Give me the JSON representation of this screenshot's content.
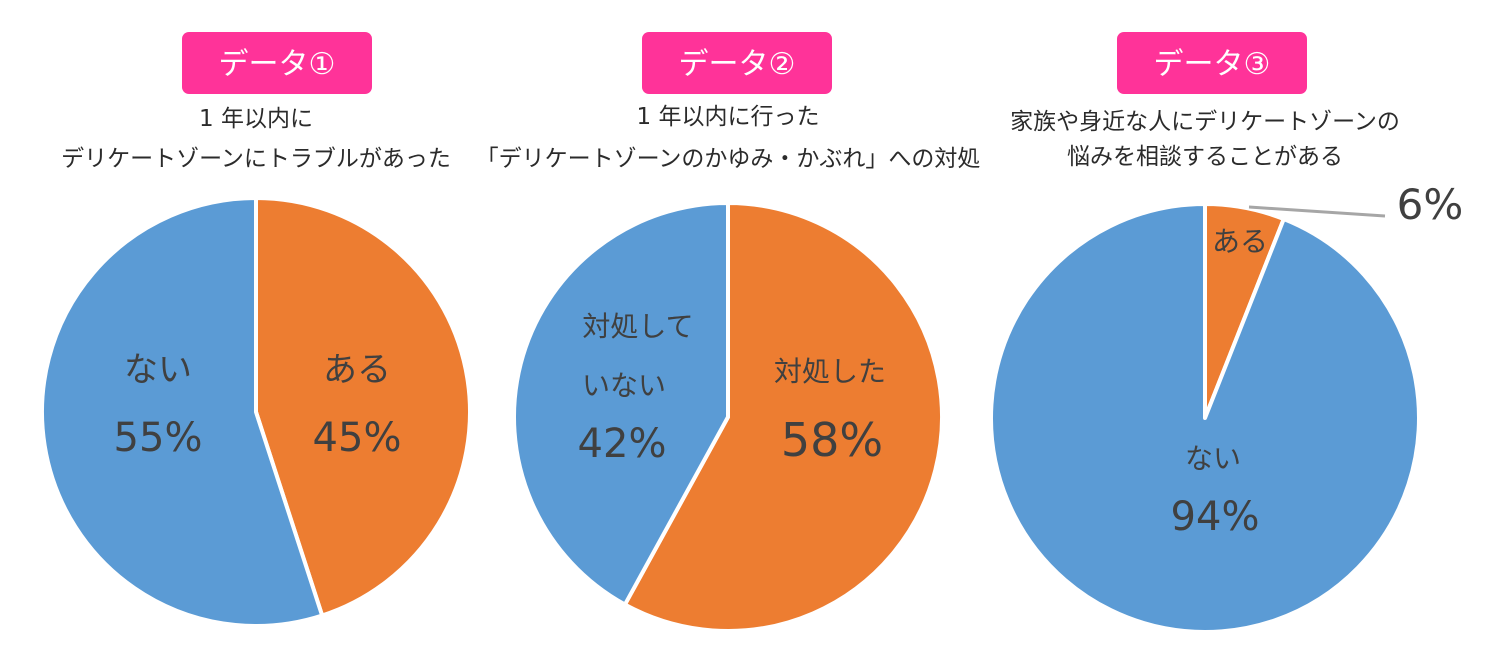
{
  "colors": {
    "badge": "#ff3399",
    "badge_text": "#ffffff",
    "blue": "#5b9bd5",
    "orange": "#ed7d31",
    "slice_border": "#ffffff",
    "label_text": "#404040",
    "leader_line": "#a6a6a6"
  },
  "chart_data": [
    {
      "type": "pie",
      "badge": "データ①",
      "title_lines": [
        "1 年以内に",
        "デリケートゾーンにトラブルがあった"
      ],
      "slices": [
        {
          "label_lines": [
            "ある"
          ],
          "value": 45,
          "value_label": "45%",
          "color": "#ed7d31"
        },
        {
          "label_lines": [
            "ない"
          ],
          "value": 55,
          "value_label": "55%",
          "color": "#5b9bd5"
        }
      ]
    },
    {
      "type": "pie",
      "badge": "データ②",
      "title_lines": [
        "1 年以内に行った",
        "「デリケートゾーンのかゆみ・かぶれ」への対処"
      ],
      "slices": [
        {
          "label_lines": [
            "対処した"
          ],
          "value": 58,
          "value_label": "58%",
          "color": "#ed7d31"
        },
        {
          "label_lines": [
            "対処して",
            "いない"
          ],
          "value": 42,
          "value_label": "42%",
          "color": "#5b9bd5"
        }
      ]
    },
    {
      "type": "pie",
      "badge": "データ③",
      "title_lines": [
        "家族や身近な人にデリケートゾーンの",
        "悩みを相談することがある"
      ],
      "slices": [
        {
          "label_lines": [
            "ある"
          ],
          "value": 6,
          "value_label": "6%",
          "color": "#ed7d31"
        },
        {
          "label_lines": [
            "ない"
          ],
          "value": 94,
          "value_label": "94%",
          "color": "#5b9bd5"
        }
      ]
    }
  ]
}
